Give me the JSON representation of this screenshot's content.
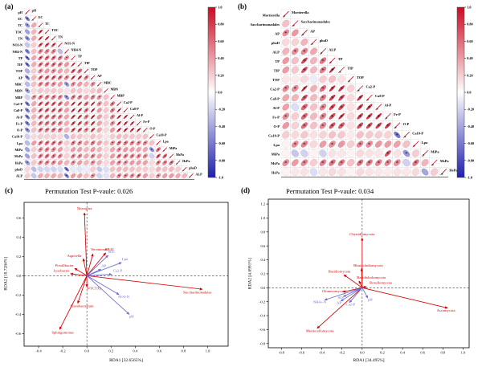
{
  "colors": {
    "positive": "#cc0a22",
    "negative": "#1f1fae",
    "species_arrow": "#d40000",
    "env_arrow": "#6b6bd6",
    "grid": "#d8d8d8"
  },
  "chart_data": [
    {
      "type": "heatmap",
      "subtype": "correlation-ellipse-matrix",
      "panel_tag": "(a)",
      "triangle": "lower",
      "sig_threshold": 0.45,
      "variables": [
        "pH",
        "EC",
        "TC",
        "TOC",
        "TN",
        "NO3-N",
        "NH4-N",
        "TP",
        "TIP",
        "TOP",
        "AP",
        "MBC",
        "MBN",
        "MBP",
        "Ca2-P",
        "Ca8-P",
        "Al-P",
        "Fe-P",
        "O-P",
        "Ca10-P",
        "Lpa",
        "MiPa",
        "MsPa",
        "HsPa",
        "phoD",
        "ALP"
      ],
      "values": [
        [
          -0.62
        ],
        [
          -0.45,
          0.35
        ],
        [
          -0.42,
          0.3,
          0.85
        ],
        [
          -0.5,
          0.34,
          0.88,
          0.9
        ],
        [
          -0.25,
          0.2,
          0.72,
          0.75,
          0.78
        ],
        [
          -0.55,
          0.25,
          0.5,
          0.48,
          0.5,
          -0.3
        ],
        [
          -0.7,
          0.35,
          0.65,
          0.6,
          0.65,
          0.55,
          0.45
        ],
        [
          -0.68,
          0.33,
          0.62,
          0.58,
          0.62,
          0.52,
          0.42,
          0.95
        ],
        [
          -0.35,
          0.2,
          0.45,
          0.42,
          0.45,
          0.38,
          0.3,
          0.7,
          0.55
        ],
        [
          -0.6,
          0.3,
          0.68,
          0.65,
          0.68,
          0.6,
          0.48,
          0.85,
          0.82,
          0.55
        ],
        [
          -0.3,
          0.25,
          0.5,
          0.48,
          0.45,
          0.4,
          -0.45,
          0.45,
          0.42,
          0.3,
          0.45
        ],
        [
          -0.45,
          0.15,
          0.22,
          0.2,
          0.22,
          0.18,
          0.12,
          0.25,
          0.22,
          0.15,
          0.22,
          0.3
        ],
        [
          -0.2,
          0.45,
          0.55,
          0.52,
          0.55,
          0.48,
          -0.5,
          0.55,
          0.52,
          0.38,
          0.52,
          0.45,
          0.25
        ],
        [
          -0.62,
          0.35,
          0.7,
          0.68,
          0.7,
          0.62,
          0.4,
          0.88,
          0.85,
          0.6,
          0.9,
          0.45,
          0.25,
          0.55
        ],
        [
          -0.55,
          0.32,
          0.68,
          0.65,
          0.68,
          0.6,
          0.38,
          0.85,
          0.82,
          0.58,
          0.88,
          0.42,
          0.22,
          0.52,
          0.92
        ],
        [
          -0.6,
          0.3,
          0.6,
          0.58,
          0.6,
          0.52,
          0.35,
          0.8,
          0.78,
          0.52,
          0.82,
          0.4,
          0.2,
          0.48,
          0.88,
          0.9
        ],
        [
          -0.58,
          0.28,
          0.58,
          0.55,
          0.58,
          0.5,
          0.32,
          0.78,
          0.75,
          0.5,
          0.8,
          0.38,
          0.18,
          0.45,
          0.85,
          0.88,
          0.9
        ],
        [
          -0.5,
          0.25,
          0.55,
          0.52,
          0.55,
          0.48,
          0.3,
          0.72,
          0.7,
          0.48,
          0.75,
          0.35,
          0.15,
          0.42,
          0.8,
          0.82,
          0.85,
          0.88
        ],
        [
          -0.2,
          0.15,
          0.2,
          0.18,
          0.2,
          0.15,
          -0.35,
          0.25,
          0.22,
          0.15,
          0.25,
          0.18,
          0.1,
          0.2,
          0.28,
          0.25,
          0.22,
          0.2,
          0.25
        ],
        [
          -0.3,
          0.4,
          0.6,
          0.58,
          0.6,
          0.52,
          0.2,
          0.55,
          0.52,
          0.38,
          0.55,
          0.4,
          0.22,
          0.45,
          0.58,
          0.55,
          0.52,
          0.5,
          0.48,
          0.25
        ],
        [
          -0.4,
          0.2,
          0.45,
          0.5,
          0.48,
          0.4,
          0.15,
          0.4,
          0.38,
          0.28,
          0.42,
          0.3,
          0.15,
          0.35,
          0.45,
          0.42,
          0.4,
          0.38,
          0.35,
          -0.5,
          0.6
        ],
        [
          -0.42,
          0.25,
          0.55,
          0.58,
          0.55,
          0.48,
          0.18,
          0.5,
          0.48,
          0.35,
          0.52,
          0.35,
          0.18,
          0.4,
          0.55,
          0.52,
          0.5,
          0.48,
          0.45,
          -0.2,
          0.7,
          0.65
        ],
        [
          -0.45,
          0.22,
          0.48,
          0.5,
          0.48,
          0.42,
          0.3,
          0.45,
          0.42,
          0.3,
          0.45,
          0.32,
          0.15,
          0.38,
          0.48,
          0.45,
          0.42,
          0.4,
          0.38,
          0.15,
          0.55,
          0.5,
          0.6
        ],
        [
          0.15,
          -0.3,
          -0.2,
          -0.18,
          -0.2,
          -0.15,
          -0.65,
          -0.1,
          -0.12,
          -0.08,
          0.2,
          -0.25,
          -0.15,
          0.25,
          0.3,
          0.28,
          0.25,
          0.22,
          0.2,
          0.15,
          0.3,
          0.25,
          0.28,
          0.2
        ],
        [
          0.2,
          -0.25,
          0.35,
          0.32,
          0.35,
          0.28,
          -0.6,
          0.4,
          0.38,
          0.25,
          0.45,
          -0.2,
          -0.12,
          0.3,
          0.5,
          0.48,
          0.45,
          0.6,
          0.4,
          0.2,
          0.45,
          0.4,
          0.42,
          0.35,
          0.3
        ]
      ],
      "colorbar_ticks": [
        "1.0",
        "0.80",
        "0.60",
        "0.40",
        "0.20",
        "0.0",
        "-0.20",
        "-0.40",
        "-0.60",
        "-0.80",
        "-1.0"
      ]
    },
    {
      "type": "heatmap",
      "subtype": "correlation-ellipse-matrix",
      "panel_tag": "(b)",
      "triangle": "lower",
      "sig_threshold": 0.45,
      "variables": [
        "Mortierella",
        "Saccharimonadales",
        "AP",
        "phoD",
        "ALP",
        "TP",
        "TIP",
        "TOP",
        "Ca2-P",
        "Ca8-P",
        "Al-P",
        "Fe-P",
        "O-P",
        "Ca10-P",
        "Lpa",
        "MiPa",
        "MsPa",
        "HsPa"
      ],
      "values": [
        [
          0.25
        ],
        [
          0.45,
          0.42
        ],
        [
          0.15,
          0.18,
          0.3
        ],
        [
          0.3,
          0.45,
          0.48,
          0.35
        ],
        [
          0.42,
          0.25,
          0.75,
          0.3,
          0.55
        ],
        [
          0.4,
          0.22,
          0.72,
          0.28,
          0.52,
          0.92
        ],
        [
          0.1,
          0.08,
          0.15,
          -0.08,
          0.2,
          0.25,
          0.12
        ],
        [
          0.48,
          0.45,
          0.9,
          0.32,
          0.58,
          0.85,
          0.82,
          0.18
        ],
        [
          0.35,
          0.3,
          0.72,
          0.28,
          0.52,
          0.8,
          0.78,
          0.15,
          0.85
        ],
        [
          0.38,
          -0.15,
          0.6,
          0.25,
          0.48,
          0.75,
          0.72,
          0.12,
          0.8,
          0.85
        ],
        [
          0.45,
          0.2,
          0.62,
          0.28,
          0.5,
          0.72,
          0.88,
          0.15,
          0.78,
          0.82,
          0.85
        ],
        [
          0.42,
          0.18,
          0.58,
          0.25,
          0.48,
          0.68,
          0.65,
          0.12,
          0.72,
          0.75,
          0.78,
          0.8
        ],
        [
          0.2,
          0.15,
          0.22,
          0.12,
          0.18,
          0.25,
          0.22,
          0.08,
          0.25,
          0.22,
          0.2,
          0.18,
          -0.6
        ],
        [
          0.05,
          0.45,
          0.5,
          0.15,
          0.4,
          0.45,
          0.42,
          0.2,
          0.48,
          0.45,
          0.42,
          0.4,
          0.38,
          0.25
        ],
        [
          0.05,
          -0.25,
          -0.2,
          0.05,
          -0.2,
          0.12,
          0.1,
          0.05,
          0.15,
          0.12,
          0.1,
          0.7,
          0.12,
          -0.45,
          0.2
        ],
        [
          0.45,
          0.4,
          0.48,
          0.2,
          0.5,
          0.55,
          0.52,
          0.25,
          0.55,
          0.52,
          0.5,
          0.48,
          0.45,
          -0.2,
          0.55,
          0.3
        ],
        [
          0.05,
          0.1,
          0.12,
          -0.15,
          0.1,
          0.15,
          0.12,
          0.05,
          0.15,
          0.12,
          0.1,
          0.08,
          0.12,
          0.1,
          0.15,
          -0.4,
          0.2
        ]
      ],
      "colorbar_ticks": [
        "1.0",
        "0.80",
        "0.60",
        "0.40",
        "0.20",
        "0.0",
        "-0.20",
        "-0.40",
        "-0.60",
        "-0.80",
        "-1.0"
      ]
    },
    {
      "type": "scatter",
      "subtype": "rda-biplot",
      "panel_tag": "(c)",
      "title": "Permutation Test P-vaule: 0.026",
      "xlabel": "RDA1 [32.6565%]",
      "ylabel": "RDA2 [10.7284%]",
      "xlim": [
        -0.52,
        1.17
      ],
      "ylim": [
        -0.73,
        0.76
      ],
      "xticks": [
        -0.4,
        -0.2,
        0.0,
        0.2,
        0.4,
        0.6,
        0.8,
        1.0
      ],
      "yticks": [
        -0.6,
        -0.4,
        -0.2,
        0.0,
        0.2,
        0.4,
        0.6
      ],
      "species": [
        {
          "name": "Nitrospira",
          "x": -0.02,
          "y": 0.65,
          "lx": -0.02,
          "ly": 0.685
        },
        {
          "name": "Terrimonas",
          "x": 0.05,
          "y": 0.225,
          "lx": 0.1,
          "ly": 0.26
        },
        {
          "name": "RB41",
          "x": 0.155,
          "y": 0.235,
          "lx": 0.185,
          "ly": 0.26
        },
        {
          "name": "Aquicella",
          "x": -0.03,
          "y": 0.175,
          "lx": -0.105,
          "ly": 0.195
        },
        {
          "name": "Povalibacter",
          "x": -0.1,
          "y": 0.075,
          "lx": -0.185,
          "ly": 0.095
        },
        {
          "name": "Lysobacter",
          "x": -0.135,
          "y": 0.02,
          "lx": -0.21,
          "ly": 0.04
        },
        {
          "name": "WTCTX1",
          "x": 0.0,
          "y": -0.115,
          "lx": 0.06,
          "ly": -0.145
        },
        {
          "name": "Flavobacterium",
          "x": -0.075,
          "y": -0.285,
          "lx": -0.04,
          "ly": -0.325
        },
        {
          "name": "Sphingomonas",
          "x": -0.225,
          "y": -0.555,
          "lx": -0.2,
          "ly": -0.6
        },
        {
          "name": "Saccharimonadales",
          "x": 0.955,
          "y": -0.14,
          "lx": 0.915,
          "ly": -0.185
        }
      ],
      "env": [
        {
          "name": "SOC",
          "x": 0.175,
          "y": 0.21,
          "lx": 0.205,
          "ly": 0.235
        },
        {
          "name": "Lpa",
          "x": 0.285,
          "y": 0.135,
          "lx": 0.315,
          "ly": 0.16
        },
        {
          "name": "AP",
          "x": 0.115,
          "y": 0.065,
          "lx": 0.14,
          "ly": 0.09
        },
        {
          "name": "Ca2-P",
          "x": 0.205,
          "y": 0.015,
          "lx": 0.255,
          "ly": 0.04
        },
        {
          "name": "NO3-N",
          "x": 0.265,
          "y": -0.195,
          "lx": 0.305,
          "ly": -0.23
        },
        {
          "name": "pH",
          "x": 0.35,
          "y": -0.4,
          "lx": 0.37,
          "ly": -0.435
        }
      ]
    },
    {
      "type": "scatter",
      "subtype": "rda-biplot",
      "panel_tag": "(d)",
      "title": "Permutation Test P-vaule: 0.034",
      "xlabel": "RDA1 [34.495%]",
      "ylabel": "RDA2 [4.8991%]",
      "xlim": [
        -0.93,
        1.06
      ],
      "ylim": [
        -0.86,
        1.27
      ],
      "xticks": [
        -0.8,
        -0.6,
        -0.4,
        -0.2,
        0.0,
        0.2,
        0.4,
        0.6,
        0.8,
        1.0
      ],
      "yticks": [
        -0.8,
        -0.6,
        -0.4,
        -0.2,
        0.0,
        0.2,
        0.4,
        0.6,
        0.8,
        1.0,
        1.2
      ],
      "species": [
        {
          "name": "Chytridiomycota",
          "x": 0.0,
          "y": 0.71,
          "lx": 0.0,
          "ly": 0.75
        },
        {
          "name": "Blastocladiomycota",
          "x": -0.005,
          "y": 0.275,
          "lx": 0.06,
          "ly": 0.305
        },
        {
          "name": "Basidiomycota",
          "x": -0.18,
          "y": 0.185,
          "lx": -0.225,
          "ly": 0.215
        },
        {
          "name": "Basidiobolomycota",
          "x": -0.03,
          "y": 0.095,
          "lx": 0.09,
          "ly": 0.13
        },
        {
          "name": "Rozellomycota",
          "x": 0.04,
          "y": 0.015,
          "lx": 0.185,
          "ly": 0.055
        },
        {
          "name": "Ascomycota",
          "x": 0.845,
          "y": -0.29,
          "lx": 0.83,
          "ly": -0.34
        },
        {
          "name": "Mortierellomycota",
          "x": -0.445,
          "y": -0.58,
          "lx": -0.42,
          "ly": -0.635
        },
        {
          "name": "Glomeromycota",
          "x": -0.19,
          "y": -0.06,
          "lx": -0.28,
          "ly": -0.065
        }
      ],
      "env": [
        {
          "name": "NH4+-N",
          "x": -0.37,
          "y": -0.175,
          "lx": -0.42,
          "ly": -0.22
        },
        {
          "name": "SOC",
          "x": -0.185,
          "y": -0.125,
          "lx": -0.205,
          "ly": -0.16
        },
        {
          "name": "AP",
          "x": -0.21,
          "y": -0.19,
          "lx": -0.23,
          "ly": -0.235
        },
        {
          "name": "Ca2-P",
          "x": -0.125,
          "y": -0.21,
          "lx": -0.115,
          "ly": -0.255
        },
        {
          "name": "pH",
          "x": 0.055,
          "y": -0.145,
          "lx": 0.08,
          "ly": -0.185
        }
      ]
    }
  ]
}
